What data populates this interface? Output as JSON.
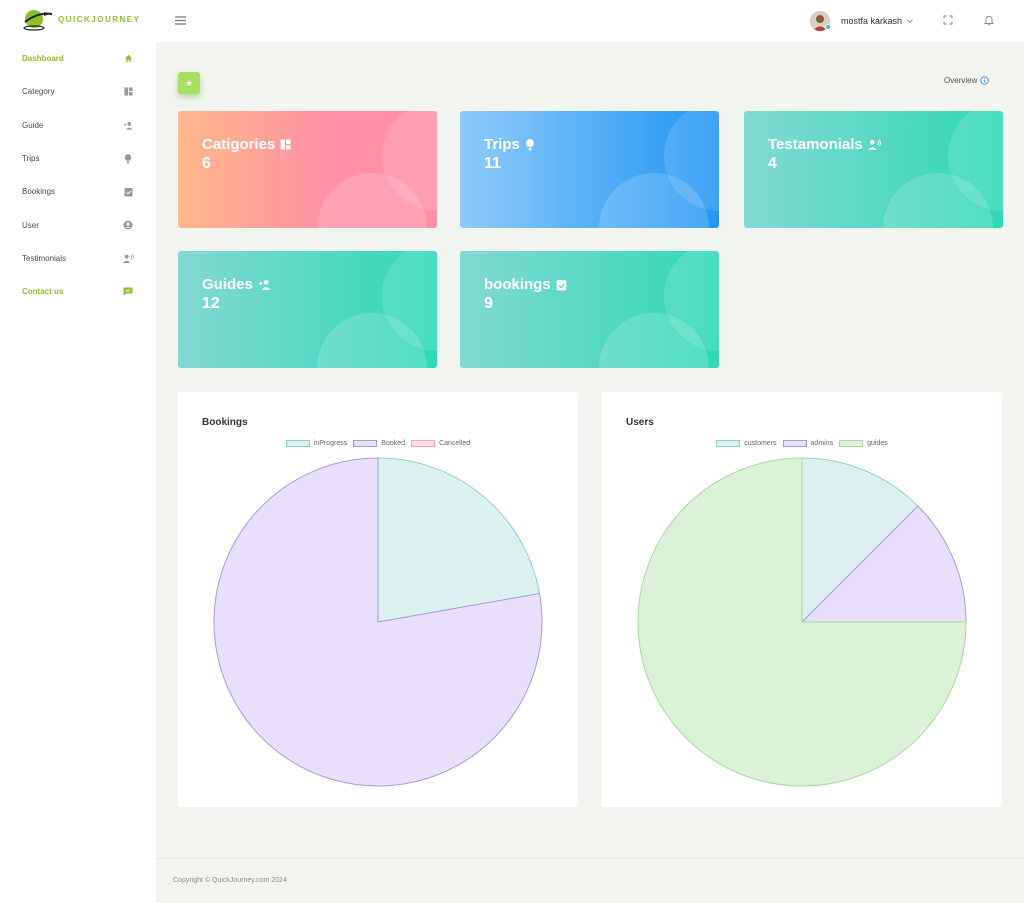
{
  "app": {
    "logo_text": "QUICKJOURNEY"
  },
  "sidebar": {
    "items": [
      {
        "label": "Dashboard",
        "icon": "home-icon"
      },
      {
        "label": "Category",
        "icon": "dashboard-icon"
      },
      {
        "label": "Guide",
        "icon": "person-add-icon"
      },
      {
        "label": "Trips",
        "icon": "balloon-icon"
      },
      {
        "label": "Bookings",
        "icon": "clipboard-check-icon"
      },
      {
        "label": "User",
        "icon": "user-circle-icon"
      },
      {
        "label": "Testimonials",
        "icon": "person-voice-icon"
      },
      {
        "label": "Contact us",
        "icon": "message-icon"
      }
    ]
  },
  "topbar": {
    "user_name": "mostfa karkash"
  },
  "overview_label": "Overview",
  "cards": [
    {
      "title": "Catigories",
      "value": "6",
      "icon": "dashboard-icon"
    },
    {
      "title": "Trips",
      "value": "11",
      "icon": "balloon-icon"
    },
    {
      "title": "Testamonials",
      "value": "4",
      "icon": "person-voice-icon"
    },
    {
      "title": "Guides",
      "value": "12",
      "icon": "person-add-icon"
    },
    {
      "title": "bookings",
      "value": "9",
      "icon": "clipboard-check-icon"
    }
  ],
  "chart_data": [
    {
      "type": "pie",
      "title": "Bookings",
      "categories": [
        "inProgress",
        "Booked",
        "Cancelled"
      ],
      "values": [
        2,
        7,
        0
      ],
      "colors": [
        "#dcf1ef",
        "#e8dffa",
        "#fbdde4"
      ],
      "borders": [
        "#8fd0c8",
        "#a99bd8",
        "#f4a8b8"
      ],
      "legend": "top"
    },
    {
      "type": "pie",
      "title": "Users",
      "categories": [
        "customers",
        "admins",
        "guides"
      ],
      "values": [
        1,
        1,
        6
      ],
      "colors": [
        "#dcf1ef",
        "#e8dffa",
        "#dcf2d8"
      ],
      "borders": [
        "#8fd0c8",
        "#a99bd8",
        "#a8dba0"
      ],
      "legend": "top"
    }
  ],
  "footer": {
    "copyright": "Copyright © QuickJourney.com 2024"
  }
}
